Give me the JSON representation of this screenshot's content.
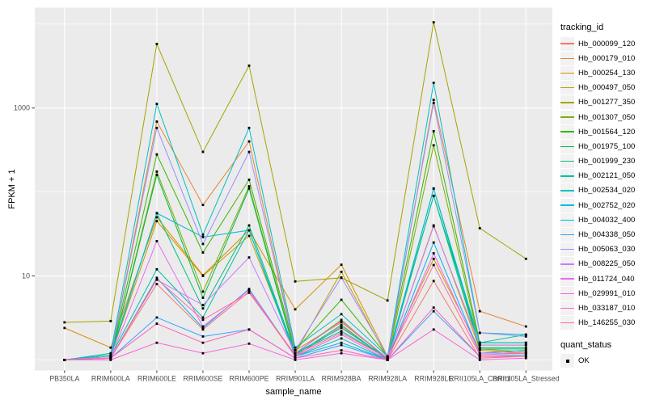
{
  "chart_data": {
    "type": "line",
    "title": "",
    "xlabel": "sample_name",
    "ylabel": "FPKM + 1",
    "y_scale": "log10",
    "grid": true,
    "panel_bg": "#EBEBEB",
    "grid_color": "#FFFFFF",
    "point_color": "#000000",
    "tick_text_color": "#4D4D4D",
    "y_ticks": [
      {
        "value": 1000,
        "label": "1000"
      },
      {
        "value": 10,
        "label": "10"
      }
    ],
    "y_minor_gridlines": [
      10000,
      100,
      1
    ],
    "ylim": [
      1,
      15000
    ],
    "categories": [
      "PB350LA",
      "RRIM600LA",
      "RRIM600LE",
      "RRIM600SE",
      "RRIM600PE",
      "RRIM901LA",
      "RRIM928BA",
      "RRIM928LA",
      "RRIM928LE",
      "RRII105LA_Control",
      "RRII105LA_Stressed"
    ],
    "legend": {
      "title": "tracking_id",
      "position": "right"
    },
    "quant_legend": {
      "title": "quant_status",
      "items": [
        {
          "label": "OK",
          "marker": "black-square"
        }
      ]
    },
    "series": [
      {
        "name": "Hb_000099_120",
        "color": "#F8766D",
        "values": [
          1.0,
          1.05,
          8.0,
          2.3,
          6.5,
          1.1,
          2.5,
          1.0,
          8.7,
          1.05,
          1.1
        ]
      },
      {
        "name": "Hb_000179_010",
        "color": "#EA8331",
        "values": [
          1.0,
          1.1,
          690,
          70,
          400,
          1.3,
          2.8,
          1.05,
          1250,
          3.8,
          2.5
        ]
      },
      {
        "name": "Hb_000254_130",
        "color": "#D89000",
        "values": [
          2.4,
          1.4,
          50,
          10.2,
          35,
          4.0,
          13.6,
          1.1,
          16,
          1.3,
          1.2
        ]
      },
      {
        "name": "Hb_000497_050",
        "color": "#C09B00",
        "values": [
          1.0,
          1.1,
          45,
          10,
          30,
          1.2,
          11.2,
          1.05,
          40,
          1.35,
          1.25
        ]
      },
      {
        "name": "Hb_001277_350",
        "color": "#A3A500",
        "values": [
          2.8,
          2.9,
          5800,
          300,
          3200,
          8.6,
          9.5,
          5.1,
          10500,
          37,
          16
        ]
      },
      {
        "name": "Hb_001307_050",
        "color": "#7CAE00",
        "values": [
          1.0,
          1.05,
          175,
          6.5,
          117,
          1.2,
          3.0,
          1.0,
          360,
          1.5,
          1.5
        ]
      },
      {
        "name": "Hb_001564_120",
        "color": "#39B600",
        "values": [
          1.0,
          1.1,
          280,
          19,
          140,
          1.3,
          5.2,
          1.1,
          530,
          1.6,
          1.6
        ]
      },
      {
        "name": "Hb_001975_100",
        "color": "#00BB4E",
        "values": [
          1.0,
          1.05,
          160,
          5.5,
          110,
          1.15,
          2.6,
          1.0,
          110,
          1.4,
          1.4
        ]
      },
      {
        "name": "Hb_001999_230",
        "color": "#00BF7D",
        "values": [
          1.0,
          1.15,
          56,
          4.1,
          40,
          1.2,
          2.2,
          1.05,
          90,
          1.35,
          1.35
        ]
      },
      {
        "name": "Hb_002121_050",
        "color": "#00C1A3",
        "values": [
          1.0,
          1.1,
          12,
          3.2,
          35,
          1.1,
          1.8,
          1.0,
          90,
          1.6,
          2.0
        ]
      },
      {
        "name": "Hb_002534_020",
        "color": "#00BFC4",
        "values": [
          1.0,
          1.2,
          1120,
          31,
          580,
          1.4,
          3.5,
          1.1,
          2000,
          2.1,
          2.0
        ]
      },
      {
        "name": "Hb_002752_020",
        "color": "#00BADE",
        "values": [
          1.0,
          1.1,
          56,
          29,
          35,
          1.2,
          2.4,
          1.05,
          110,
          1.6,
          1.6
        ]
      },
      {
        "name": "Hb_004032_400",
        "color": "#00B0F6",
        "values": [
          1.0,
          1.05,
          9.5,
          2.4,
          7.0,
          1.1,
          1.6,
          1.0,
          25,
          1.2,
          1.3
        ]
      },
      {
        "name": "Hb_004338_050",
        "color": "#35A2FF",
        "values": [
          1.0,
          1.05,
          3.2,
          1.9,
          2.3,
          1.05,
          1.5,
          1.0,
          3.8,
          1.1,
          1.15
        ]
      },
      {
        "name": "Hb_005063_030",
        "color": "#9590FF",
        "values": [
          1.0,
          1.1,
          580,
          24,
          300,
          1.3,
          9.6,
          1.1,
          1150,
          2.1,
          1.9
        ]
      },
      {
        "name": "Hb_008225_050",
        "color": "#C77CFF",
        "values": [
          1.0,
          1.05,
          9.0,
          4.5,
          16.6,
          1.2,
          2.9,
          1.05,
          39,
          1.5,
          1.5
        ]
      },
      {
        "name": "Hb_011724_040",
        "color": "#E76BF3",
        "values": [
          1.0,
          1.05,
          26,
          2.5,
          6.8,
          1.1,
          2.0,
          1.0,
          18.6,
          1.2,
          1.2
        ]
      },
      {
        "name": "Hb_029991_010",
        "color": "#FA62DB",
        "values": [
          1.0,
          1.0,
          1.6,
          1.2,
          1.56,
          1.0,
          1.2,
          1.0,
          2.3,
          1.0,
          1.05
        ]
      },
      {
        "name": "Hb_033187_010",
        "color": "#FF62BC",
        "values": [
          1.0,
          1.05,
          2.7,
          1.6,
          2.3,
          1.05,
          1.3,
          1.0,
          4.2,
          1.1,
          1.1
        ]
      },
      {
        "name": "Hb_146255_030",
        "color": "#FF6A98",
        "values": [
          1.0,
          1.05,
          9.2,
          3.0,
          6.3,
          1.15,
          2.1,
          1.05,
          13.5,
          1.15,
          1.2
        ]
      }
    ]
  }
}
